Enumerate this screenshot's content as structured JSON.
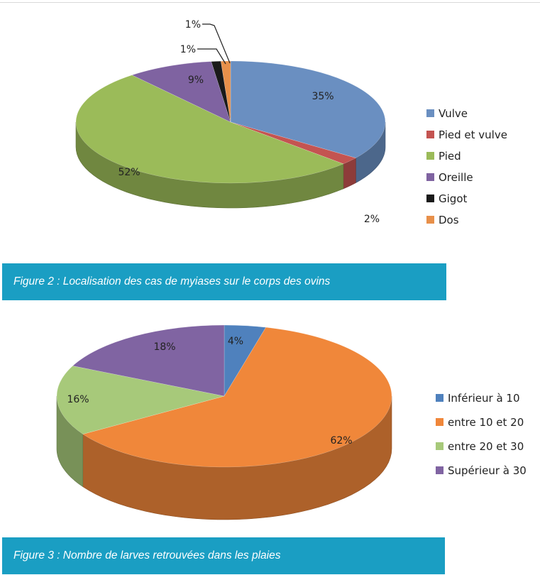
{
  "figure2": {
    "caption": "Figure 2 : Localisation des cas de myiases sur le corps des ovins",
    "chart_data": {
      "type": "pie",
      "categories": [
        "Vulve",
        "Pied et vulve",
        "Pied",
        "Oreille",
        "Gigot",
        "Dos"
      ],
      "values": [
        35,
        2,
        52,
        9,
        1,
        1
      ],
      "data_labels": [
        "35%",
        "2%",
        "52%",
        "9%",
        "1%",
        "1%"
      ],
      "colors": [
        "#6a8fc1",
        "#c45451",
        "#9bbb59",
        "#7f63a1",
        "#1a1a1a",
        "#e8904a"
      ],
      "legend_position": "right",
      "style": "3d"
    }
  },
  "figure3": {
    "caption": "Figure 3 : Nombre de larves retrouvées dans les plaies",
    "chart_data": {
      "type": "pie",
      "categories": [
        "Inférieur à 10",
        "entre 10 et 20",
        "entre 20 et 30",
        "Supérieur à 30"
      ],
      "values": [
        4,
        62,
        16,
        18
      ],
      "data_labels": [
        "4%",
        "62%",
        "16%",
        "18%"
      ],
      "colors": [
        "#4f81bd",
        "#f0873a",
        "#a7c97a",
        "#8064a2"
      ],
      "legend_position": "right",
      "style": "3d"
    }
  }
}
